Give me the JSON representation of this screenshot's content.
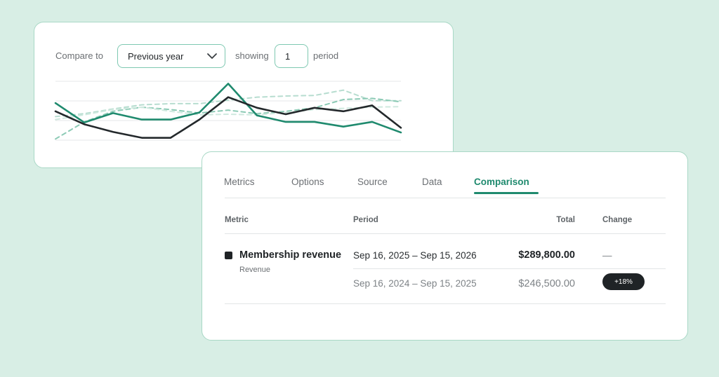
{
  "compare": {
    "compare_label": "Compare to",
    "select_value": "Previous year",
    "showing_label": "showing",
    "periods_value": "1",
    "period_label": "period"
  },
  "chart_data": {
    "type": "line",
    "grid": true,
    "ylim": [
      0,
      100
    ],
    "x": [
      1,
      2,
      3,
      4,
      5,
      6,
      7,
      8,
      9,
      10,
      11,
      12,
      13
    ],
    "series": [
      {
        "style": "solid",
        "color": "#1f8a6e",
        "values": [
          63,
          30,
          46,
          35,
          35,
          47,
          96,
          42,
          31,
          31,
          23,
          31,
          13
        ]
      },
      {
        "style": "solid",
        "color": "#23282b",
        "values": [
          49,
          27,
          14,
          4,
          4,
          35,
          73,
          55,
          44,
          55,
          49,
          59,
          21
        ]
      },
      {
        "style": "dashed",
        "color": "#b7ddd0",
        "values": [
          40,
          45,
          53,
          60,
          62,
          62,
          68,
          73,
          75,
          76,
          85,
          67,
          67
        ]
      },
      {
        "style": "dashed",
        "color": "#8ccab5",
        "values": [
          2,
          31,
          49,
          56,
          52,
          46,
          51,
          45,
          49,
          55,
          69,
          71,
          65
        ]
      },
      {
        "style": "dashed",
        "color": "#cfe9df",
        "values": [
          35,
          43,
          52,
          56,
          49,
          43,
          44,
          43,
          47,
          52,
          54,
          56,
          57
        ]
      }
    ]
  },
  "tabs": [
    "Metrics",
    "Options",
    "Source",
    "Data",
    "Comparison"
  ],
  "table": {
    "headers": {
      "metric": "Metric",
      "period": "Period",
      "total": "Total",
      "change": "Change"
    },
    "metric_name": "Membership revenue",
    "metric_sub": "Revenue",
    "rows": [
      {
        "period": "Sep 16, 2025 – Sep 15, 2026",
        "total": "$289,800.00",
        "change": "—"
      },
      {
        "period": "Sep 16, 2024 – Sep 15, 2025",
        "total": "$246,500.00",
        "change": "+18%"
      }
    ]
  },
  "colors": {
    "accent": "#1f8a6e",
    "background": "#d8eee5",
    "dark": "#1f2326"
  }
}
